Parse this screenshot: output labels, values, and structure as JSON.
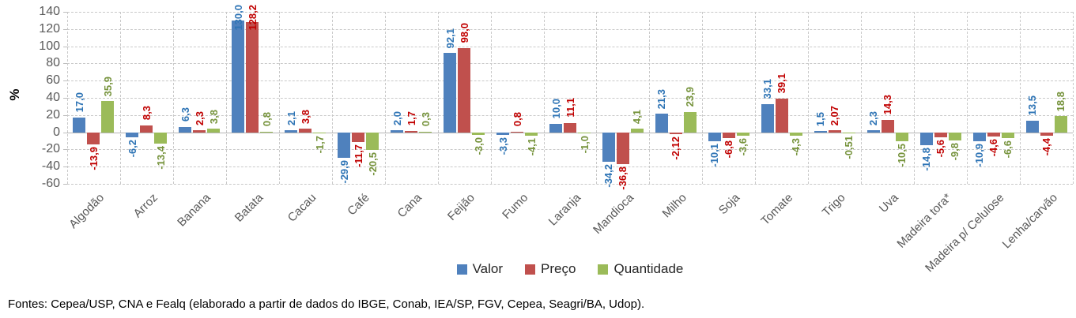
{
  "chart_data": {
    "type": "bar",
    "title": "",
    "xlabel": "",
    "ylabel": "%",
    "ylim": [
      -60,
      140
    ],
    "yticks": [
      140,
      120,
      100,
      80,
      60,
      40,
      20,
      0,
      -20,
      -40,
      -60
    ],
    "grid": "dashed horizontal and vertical",
    "legend_position": "bottom-center",
    "categories": [
      "Algodão",
      "Arroz",
      "Banana",
      "Batata",
      "Cacau",
      "Café",
      "Cana",
      "Feijão",
      "Fumo",
      "Laranja",
      "Mandioca",
      "Milho",
      "Soja",
      "Tomate",
      "Trigo",
      "Uva",
      "Madeira tora*",
      "Madeira p/ Celulose",
      "Lenha/carvão"
    ],
    "series": [
      {
        "name": "Valor",
        "color": "#4F81BD",
        "label_color": "#2E74B5",
        "values": [
          17.0,
          -6.2,
          6.3,
          130.0,
          2.1,
          -29.9,
          2.0,
          92.1,
          -3.3,
          10.0,
          -34.2,
          21.3,
          -10.1,
          33.1,
          1.5,
          2.3,
          -14.8,
          -10.9,
          13.5
        ],
        "labels": [
          "17,0",
          "-6,2",
          "6,3",
          "130,0",
          "2,1",
          "-29,9",
          "2,0",
          "92,1",
          "-3,3",
          "10,0",
          "-34,2",
          "21,3",
          "-10,1",
          "33,1",
          "1,5",
          "2,3",
          "-14,8",
          "-10,9",
          "13,5"
        ]
      },
      {
        "name": "Preço",
        "color": "#C0504D",
        "label_color": "#C00000",
        "values": [
          -13.9,
          8.3,
          2.3,
          128.2,
          3.8,
          -11.7,
          1.7,
          98.0,
          0.8,
          11.1,
          -36.8,
          -2.12,
          -6.8,
          39.1,
          2.07,
          14.3,
          -5.6,
          -4.6,
          -4.4
        ],
        "labels": [
          "-13,9",
          "8,3",
          "2,3",
          "128,2",
          "3,8",
          "-11,7",
          "1,7",
          "98,0",
          "0,8",
          "11,1",
          "-36,8",
          "-2,12",
          "-6,8",
          "39,1",
          "2,07",
          "14,3",
          "-5,6",
          "-4,6",
          "-4,4"
        ]
      },
      {
        "name": "Quantidade",
        "color": "#9BBB59",
        "label_color": "#76933C",
        "values": [
          35.9,
          -13.4,
          3.8,
          0.8,
          -1.7,
          -20.5,
          0.3,
          -3.0,
          -4.1,
          -1.0,
          4.1,
          23.9,
          -3.6,
          -4.3,
          -0.51,
          -10.5,
          -9.8,
          -6.6,
          18.8
        ],
        "labels": [
          "35,9",
          "-13,4",
          "3,8",
          "0,8",
          "-1,7",
          "-20,5",
          "0,3",
          "-3,0",
          "-4,1",
          "-1,0",
          "4,1",
          "23,9",
          "-3,6",
          "-4,3",
          "-0,51",
          "-10,5",
          "-9,8",
          "-6,6",
          "18,8"
        ]
      }
    ]
  },
  "footnote": "Fontes: Cepea/USP, CNA e Fealq (elaborado a partir de dados do IBGE, Conab, IEA/SP, FGV, Cepea, Seagri/BA, Udop).",
  "colors": {
    "background": "#FFFFFF",
    "grid": "#C9C9C9",
    "zero_line": "#B5B5B5",
    "axis_text": "#595959",
    "category_text": "#595959",
    "legend_text": "#262626",
    "footnote_text": "#000000"
  }
}
